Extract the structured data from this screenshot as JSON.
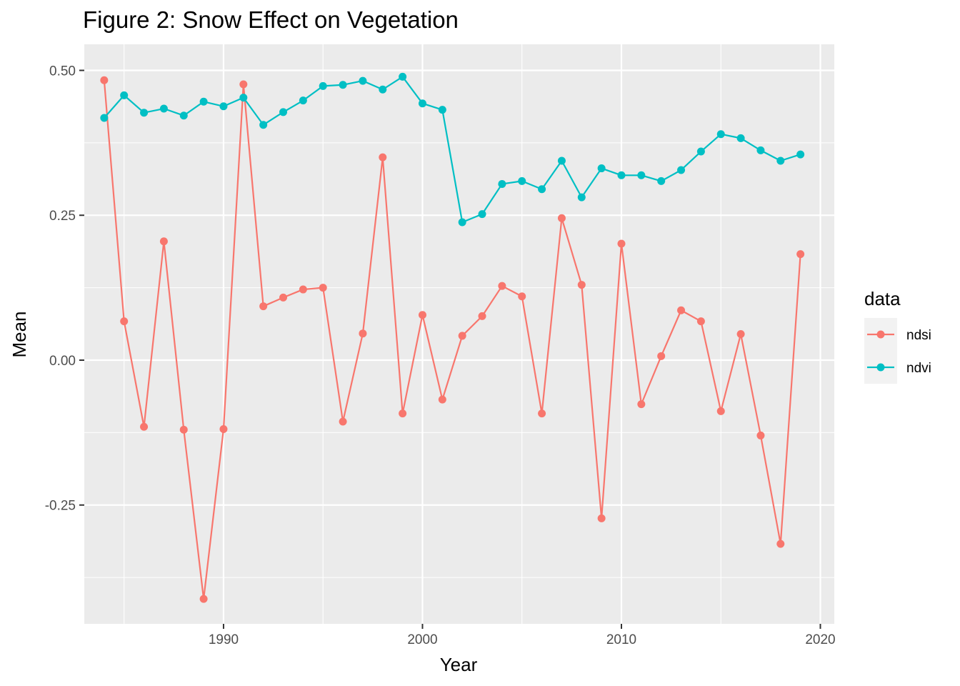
{
  "chart_data": {
    "type": "line",
    "title": "Figure 2: Snow Effect on Vegetation",
    "xlabel": "Year",
    "ylabel": "Mean",
    "xlim": [
      1983,
      2020.7
    ],
    "ylim": [
      -0.455,
      0.545
    ],
    "x_ticks": [
      1990,
      2000,
      2010,
      2020
    ],
    "x_tick_labels": [
      "1990",
      "2000",
      "2010",
      "2020"
    ],
    "y_ticks": [
      0.5,
      0.25,
      0.0,
      -0.25
    ],
    "y_tick_labels": [
      "0.50",
      "0.25",
      "0.00",
      "-0.25"
    ],
    "grid": true,
    "legend": {
      "title": "data",
      "position": "right"
    },
    "x": [
      1984,
      1985,
      1986,
      1987,
      1988,
      1989,
      1990,
      1991,
      1992,
      1993,
      1994,
      1995,
      1996,
      1997,
      1998,
      1999,
      2000,
      2001,
      2002,
      2003,
      2004,
      2005,
      2006,
      2007,
      2008,
      2009,
      2010,
      2011,
      2012,
      2013,
      2014,
      2015,
      2016,
      2017,
      2018,
      2019
    ],
    "series": [
      {
        "name": "ndsi",
        "color": "#F8766D",
        "values": [
          0.483,
          0.067,
          -0.115,
          0.205,
          -0.12,
          -0.412,
          -0.119,
          0.476,
          0.093,
          0.108,
          0.122,
          0.125,
          -0.106,
          0.046,
          0.35,
          -0.092,
          0.078,
          -0.068,
          0.042,
          0.076,
          0.128,
          0.11,
          -0.092,
          0.245,
          0.13,
          -0.273,
          0.201,
          -0.076,
          0.007,
          0.086,
          0.067,
          -0.088,
          0.045,
          -0.13,
          -0.317,
          0.183
        ]
      },
      {
        "name": "ndvi",
        "color": "#00BFC4",
        "values": [
          0.418,
          0.457,
          0.427,
          0.434,
          0.422,
          0.446,
          0.438,
          0.453,
          0.406,
          0.428,
          0.448,
          0.473,
          0.475,
          0.482,
          0.467,
          0.489,
          0.443,
          0.432,
          0.238,
          0.252,
          0.304,
          0.309,
          0.295,
          0.344,
          0.281,
          0.331,
          0.319,
          0.319,
          0.309,
          0.328,
          0.36,
          0.39,
          0.383,
          0.362,
          0.344,
          0.355
        ]
      }
    ]
  }
}
